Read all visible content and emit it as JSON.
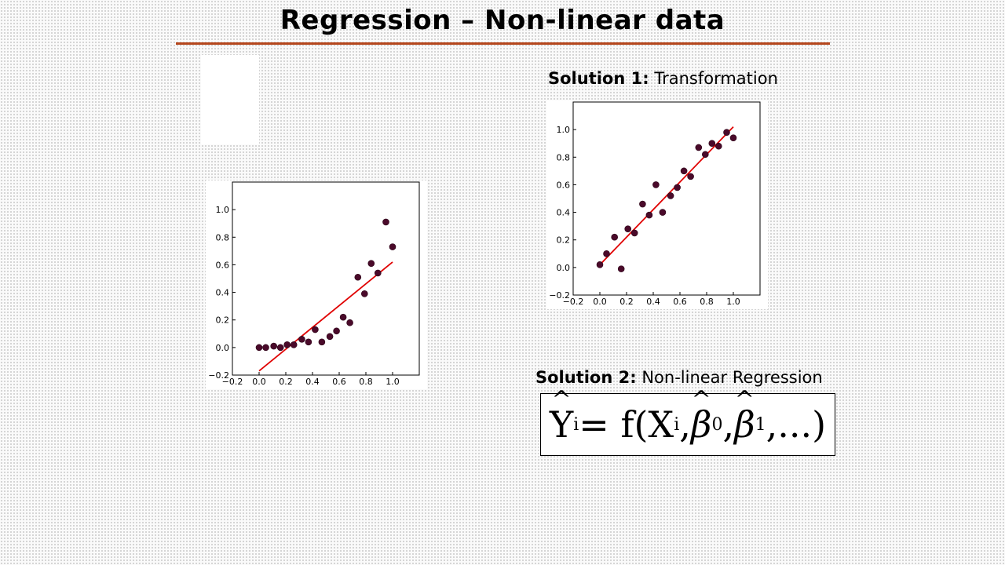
{
  "slide": {
    "title": "Regression – Non-linear data",
    "solution1_label": "Solution 1:",
    "solution1_text": "Transformation",
    "solution2_label": "Solution 2:",
    "solution2_text": "Non-linear Regression",
    "formula": {
      "lhs": "Y",
      "lhs_sub": "i",
      "equals": " = f(X",
      "x_sub": "i",
      "sep1": ", ",
      "beta0": "β",
      "beta0_sub": "0",
      "sep2": ", ",
      "beta1": "β",
      "beta1_sub": "1",
      "tail": ",...)"
    }
  },
  "colors": {
    "accent_rule": "#b5461c",
    "fit_line": "#e00000",
    "points": "#4a0a2a"
  },
  "chart_data": [
    {
      "type": "scatter",
      "title": "",
      "xlabel": "",
      "ylabel": "",
      "xlim": [
        -0.2,
        1.2
      ],
      "ylim": [
        -0.2,
        1.2
      ],
      "xticks": [
        -0.2,
        0.0,
        0.2,
        0.4,
        0.6,
        0.8,
        1.0
      ],
      "yticks": [
        -0.2,
        0.0,
        0.2,
        0.4,
        0.6,
        0.8,
        1.0
      ],
      "x": [
        0.0,
        0.05,
        0.11,
        0.16,
        0.21,
        0.26,
        0.32,
        0.37,
        0.42,
        0.47,
        0.53,
        0.58,
        0.63,
        0.68,
        0.74,
        0.79,
        0.84,
        0.89,
        0.95,
        1.0
      ],
      "y": [
        0.0,
        0.0,
        0.01,
        0.0,
        0.02,
        0.02,
        0.06,
        0.04,
        0.13,
        0.04,
        0.08,
        0.12,
        0.22,
        0.18,
        0.51,
        0.39,
        0.61,
        0.54,
        0.91,
        0.73
      ],
      "fit_line": {
        "x": [
          0.0,
          1.0
        ],
        "y": [
          -0.17,
          0.62
        ]
      }
    },
    {
      "type": "scatter",
      "title": "",
      "xlabel": "",
      "ylabel": "",
      "xlim": [
        -0.2,
        1.2
      ],
      "ylim": [
        -0.2,
        1.2
      ],
      "xticks": [
        -0.2,
        0.0,
        0.2,
        0.4,
        0.6,
        0.8,
        1.0
      ],
      "yticks": [
        -0.2,
        0.0,
        0.2,
        0.4,
        0.6,
        0.8,
        1.0
      ],
      "x": [
        0.0,
        0.05,
        0.11,
        0.16,
        0.21,
        0.26,
        0.32,
        0.37,
        0.42,
        0.47,
        0.53,
        0.58,
        0.63,
        0.68,
        0.74,
        0.79,
        0.84,
        0.89,
        0.95,
        1.0
      ],
      "y": [
        0.02,
        0.1,
        0.22,
        -0.01,
        0.28,
        0.25,
        0.46,
        0.38,
        0.6,
        0.4,
        0.52,
        0.58,
        0.7,
        0.66,
        0.87,
        0.82,
        0.9,
        0.88,
        0.98,
        0.94
      ],
      "fit_line": {
        "x": [
          0.0,
          1.0
        ],
        "y": [
          0.02,
          1.02
        ]
      }
    }
  ]
}
